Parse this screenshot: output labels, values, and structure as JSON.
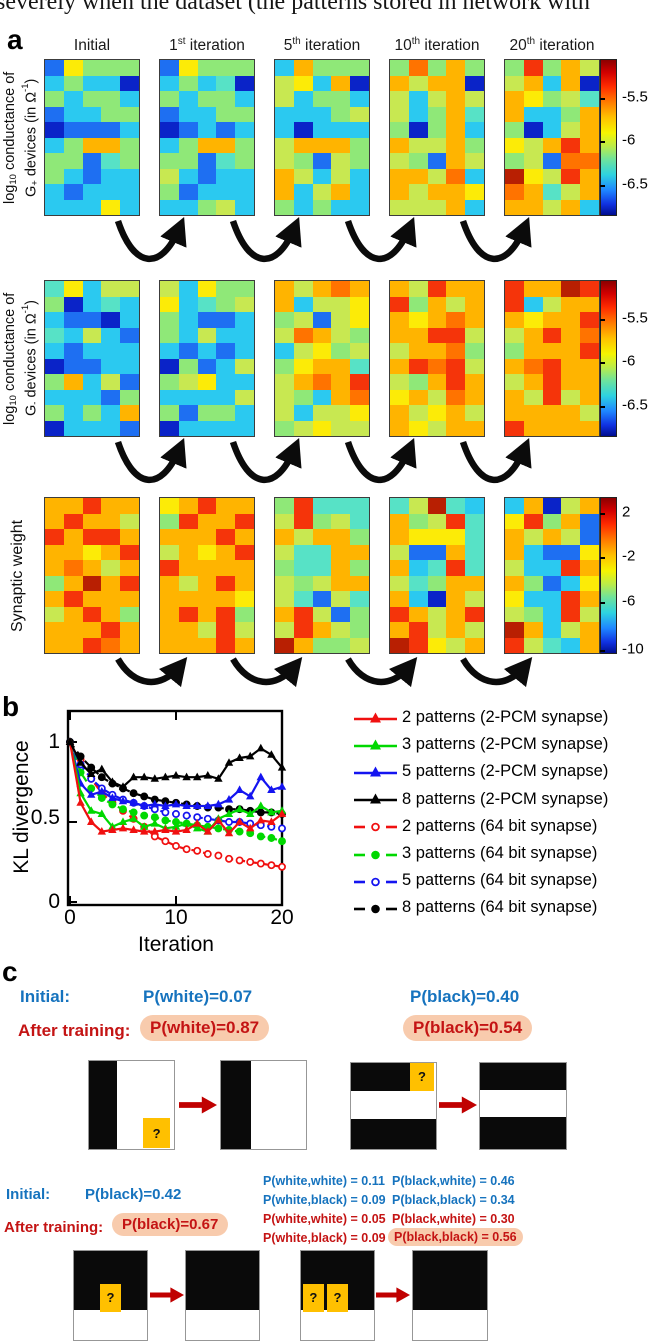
{
  "top_text_fragment": "severely when the dataset (the patterns stored in network with",
  "colors": {
    "blue_text": "#1673BE",
    "red_text": "#C41414",
    "highlight_peach": "#F8CBAD",
    "orange_cell": "#FFC000",
    "arrow_red": "#C00000",
    "chart_red": "#F01010",
    "chart_green": "#00D800",
    "chart_blue": "#1414F0",
    "chart_black": "#000000",
    "heatmap_arrow": "#0b0b0b"
  },
  "panel_a": {
    "label": "a",
    "column_titles": [
      {
        "id": "initial",
        "pre": "Initial",
        "sup": "",
        "post": ""
      },
      {
        "id": "iter1",
        "pre": "1",
        "sup": "st",
        "post": " iteration"
      },
      {
        "id": "iter5",
        "pre": "5",
        "sup": "th",
        "post": " iteration"
      },
      {
        "id": "iter10",
        "pre": "10",
        "sup": "th",
        "post": " iteration"
      },
      {
        "id": "iter20",
        "pre": "20",
        "sup": "th",
        "post": " iteration"
      }
    ],
    "palette": {
      "B": "#0A23C8",
      "b": "#1E6FF2",
      "c": "#2BC9F0",
      "t": "#57E2C6",
      "g": "#8FE878",
      "y": "#C8E851",
      "Y": "#FCEB07",
      "o": "#FFB400",
      "O": "#FF7300",
      "r": "#F5340A",
      "R": "#B81F02"
    },
    "rows": [
      {
        "id": "g-plus",
        "label": {
          "l1_pre": "log",
          "l1_sub": "10",
          "l1_post": " conductance of",
          "l2_pre": "G",
          "l2_sub": "+",
          "l2_post": " devices (in Ω",
          "l2_sup": "-1",
          "l2_end": ")"
        },
        "maps": [
          [
            "bYggg",
            "cgccB",
            "gcggc",
            "bccgg",
            "Bbbbc",
            "cgoog",
            "ggbtg",
            "gcbcc",
            "cbccc",
            "cccYc"
          ],
          [
            "bYggg",
            "cgctB",
            "gcggc",
            "bccgg",
            "Bbcbc",
            "cgoog",
            "ggbtg",
            "ycbcc",
            "gbccc",
            "ccgyc"
          ],
          [
            "coggg",
            "yYcoB",
            "ycggc",
            "cccgy",
            "cBccc",
            "yooog",
            "ygbyg",
            "oycyc",
            "ocyoc",
            "gcgcc"
          ],
          [
            "gOgog",
            "oyooB",
            "ycyoy",
            "ycgot",
            "gBgoc",
            "oyyog",
            "ygboy",
            "ooyOc",
            "oyooY",
            "yyyoc"
          ],
          [
            "grgoy",
            "yocoB",
            "oYgyt",
            "occgo",
            "gBcyo",
            "Yyoro",
            "gybOO",
            "RYyro",
            "Ootyo",
            "ooyoc"
          ]
        ]
      },
      {
        "id": "g-minus",
        "label": {
          "l1_pre": "log",
          "l1_sub": "10",
          "l1_post": " conductance of",
          "l2_pre": "G",
          "l2_sub": "-",
          "l2_post": " devices (in Ω",
          "l2_sup": "-1",
          "l2_end": ")"
        },
        "maps": [
          [
            "tYcyy",
            "gBctc",
            "cbbBc",
            "tcycb",
            "cbccc",
            "Bbbcc",
            "gocyb",
            "cccbg",
            "gcgco",
            "Bcccb"
          ],
          [
            "ycYgg",
            "Yctgy",
            "gcbbc",
            "gcycc",
            "cbcbc",
            "Bgbcy",
            "gyYcc",
            "ccccy",
            "gbggc",
            "Bcccc"
          ],
          [
            "oyoOo",
            "ocyyY",
            "gybyY",
            "yOoyg",
            "cyYgy",
            "gYoot",
            "yoOor",
            "ygcoO",
            "ycyyY",
            "gyYyy"
          ],
          [
            "oyroo",
            "rgoyo",
            "oYoOo",
            "oorry",
            "yooOg",
            "orOry",
            "ygoro",
            "YoyOo",
            "oyYoy",
            "oYyoo"
          ],
          [
            "rooRr",
            "rcyoo",
            "oYoor",
            "yoroO",
            "gooor",
            "oOroo",
            "yoroo",
            "oyryo",
            "ooooy",
            "roooo"
          ]
        ]
      },
      {
        "id": "weight",
        "label_single": "Synaptic weight",
        "maps": [
          [
            "ooroo",
            "orooy",
            "rorro",
            "ooYor",
            "oOoyo",
            "goRor",
            "orooo",
            "yorog",
            "oooro",
            "oorOo"
          ],
          [
            "Yoroo",
            "groor",
            "oooro",
            "yoYor",
            "roooo",
            "oyoro",
            "ooooY",
            "ororg",
            "ooyry",
            "oooro"
          ],
          [
            "grttt",
            "yrgyt",
            "oyoog",
            "yttoo",
            "gttog",
            "ygyoo",
            "ytbyt",
            "orybg",
            "yroyg",
            "Roggy"
          ],
          [
            "tyRtc",
            "ogyrt",
            "oYYYt",
            "ybbot",
            "octrt",
            "ytgoo",
            "ocBoy",
            "royor",
            "oryoy",
            "RrYyo"
          ],
          [
            "coByo",
            "Yrgob",
            "oyoyb",
            "ocbbY",
            "yccro",
            "ogbcY",
            "Yccro",
            "ygcry",
            "Rocyo",
            "rytco"
          ]
        ]
      }
    ],
    "colorbars": [
      {
        "labels": [
          {
            "text": "-5.5",
            "f": 0.25
          },
          {
            "text": "-6",
            "f": 0.52
          },
          {
            "text": "-6.5",
            "f": 0.8
          }
        ]
      },
      {
        "labels": [
          {
            "text": "-5.5",
            "f": 0.25
          },
          {
            "text": "-6",
            "f": 0.52
          },
          {
            "text": "-6.5",
            "f": 0.8
          }
        ]
      },
      {
        "labels": [
          {
            "text": "2",
            "f": 0.1
          },
          {
            "text": "-2",
            "f": 0.385
          },
          {
            "text": "-6",
            "f": 0.67
          },
          {
            "text": "-10",
            "f": 0.975
          }
        ]
      }
    ]
  },
  "panel_b": {
    "label": "b"
  },
  "chart_data": {
    "type": "line",
    "xlabel": "Iteration",
    "ylabel": "KL divergence",
    "xlim": [
      0,
      20
    ],
    "ylim": [
      0,
      1.2
    ],
    "xticks": [
      "0",
      "10",
      "20"
    ],
    "yticks": [
      "0",
      "0.5",
      "1"
    ],
    "grid": false,
    "legend_position": "right",
    "x": [
      0,
      1,
      2,
      3,
      4,
      5,
      6,
      7,
      8,
      9,
      10,
      11,
      12,
      13,
      14,
      15,
      16,
      17,
      18,
      19,
      20
    ],
    "series": [
      {
        "name": "2 patterns (2-PCM synapse)",
        "color": "#F01010",
        "line": "solid",
        "marker": "triangle",
        "marker_fill": "filled",
        "values": [
          1.0,
          0.62,
          0.5,
          0.44,
          0.45,
          0.46,
          0.45,
          0.44,
          0.44,
          0.45,
          0.44,
          0.45,
          0.49,
          0.44,
          0.51,
          0.43,
          0.5,
          0.46,
          0.51,
          0.5,
          0.55
        ]
      },
      {
        "name": "3 patterns (2-PCM synapse)",
        "color": "#00D800",
        "line": "solid",
        "marker": "triangle",
        "marker_fill": "filled",
        "values": [
          1.0,
          0.68,
          0.57,
          0.55,
          0.47,
          0.5,
          0.52,
          0.47,
          0.49,
          0.46,
          0.47,
          0.49,
          0.46,
          0.44,
          0.52,
          0.55,
          0.58,
          0.55,
          0.6,
          0.56,
          0.57
        ]
      },
      {
        "name": "5 patterns (2-PCM synapse)",
        "color": "#1414F0",
        "line": "solid",
        "marker": "triangle",
        "marker_fill": "filled",
        "values": [
          1.0,
          0.74,
          0.67,
          0.69,
          0.65,
          0.63,
          0.62,
          0.6,
          0.61,
          0.6,
          0.61,
          0.6,
          0.6,
          0.6,
          0.61,
          0.64,
          0.7,
          0.66,
          0.78,
          0.7,
          0.72
        ]
      },
      {
        "name": "8 patterns (2-PCM synapse)",
        "color": "#000000",
        "line": "solid",
        "marker": "triangle",
        "marker_fill": "filled",
        "values": [
          1.0,
          0.87,
          0.8,
          0.83,
          0.75,
          0.72,
          0.78,
          0.78,
          0.77,
          0.78,
          0.79,
          0.78,
          0.78,
          0.79,
          0.77,
          0.87,
          0.9,
          0.91,
          0.96,
          0.92,
          0.84
        ]
      },
      {
        "name": "2 patterns (64 bit synapse)",
        "color": "#F01010",
        "line": "dashed",
        "marker": "circle",
        "marker_fill": "open",
        "values": [
          1.0,
          0.89,
          0.77,
          0.68,
          0.62,
          0.57,
          0.52,
          0.47,
          0.41,
          0.38,
          0.35,
          0.33,
          0.32,
          0.3,
          0.29,
          0.27,
          0.26,
          0.25,
          0.24,
          0.23,
          0.22
        ]
      },
      {
        "name": "3 patterns (64 bit synapse)",
        "color": "#00D800",
        "line": "dashed",
        "marker": "circle",
        "marker_fill": "filled",
        "values": [
          1.0,
          0.81,
          0.71,
          0.65,
          0.61,
          0.58,
          0.56,
          0.54,
          0.53,
          0.51,
          0.5,
          0.49,
          0.48,
          0.47,
          0.46,
          0.45,
          0.44,
          0.43,
          0.41,
          0.4,
          0.38
        ]
      },
      {
        "name": "5 patterns (64 bit synapse)",
        "color": "#1414F0",
        "line": "dashed",
        "marker": "circle",
        "marker_fill": "open",
        "values": [
          1.0,
          0.86,
          0.77,
          0.71,
          0.67,
          0.64,
          0.62,
          0.6,
          0.58,
          0.56,
          0.55,
          0.54,
          0.53,
          0.52,
          0.51,
          0.5,
          0.5,
          0.49,
          0.48,
          0.47,
          0.46
        ]
      },
      {
        "name": "8 patterns (64 bit synapse)",
        "color": "#000000",
        "line": "dashed",
        "marker": "circle",
        "marker_fill": "filled",
        "values": [
          1.0,
          0.91,
          0.84,
          0.78,
          0.74,
          0.71,
          0.68,
          0.66,
          0.64,
          0.63,
          0.62,
          0.61,
          0.6,
          0.59,
          0.59,
          0.58,
          0.58,
          0.57,
          0.56,
          0.56,
          0.55
        ]
      }
    ]
  },
  "panel_c": {
    "label": "c",
    "question_mark": "?",
    "block1": {
      "initial_label": "Initial:",
      "initial_left": "P(white)=0.07",
      "initial_right": "P(black)=0.40",
      "after_label": "After training:",
      "after_left": "P(white)=0.87",
      "after_right": "P(black)=0.54"
    },
    "block2": {
      "initial_label": "Initial:",
      "initial_value": "P(black)=0.42",
      "after_label": "After training:",
      "after_value": "P(black)=0.67",
      "joint_lines": [
        {
          "col1": "P(white,white) = 0.11",
          "col2": "P(black,white)  = 0.46"
        },
        {
          "col1": "P(white,black)  = 0.09",
          "col2": "P(black,black)  = 0.34"
        },
        {
          "col1": "P(white,white) = 0.05",
          "col2": "P(black,white)  = 0.30"
        },
        {
          "col1": "P(white,black)  = 0.09",
          "col2": "P(black,black)  = 0.56"
        }
      ]
    }
  }
}
